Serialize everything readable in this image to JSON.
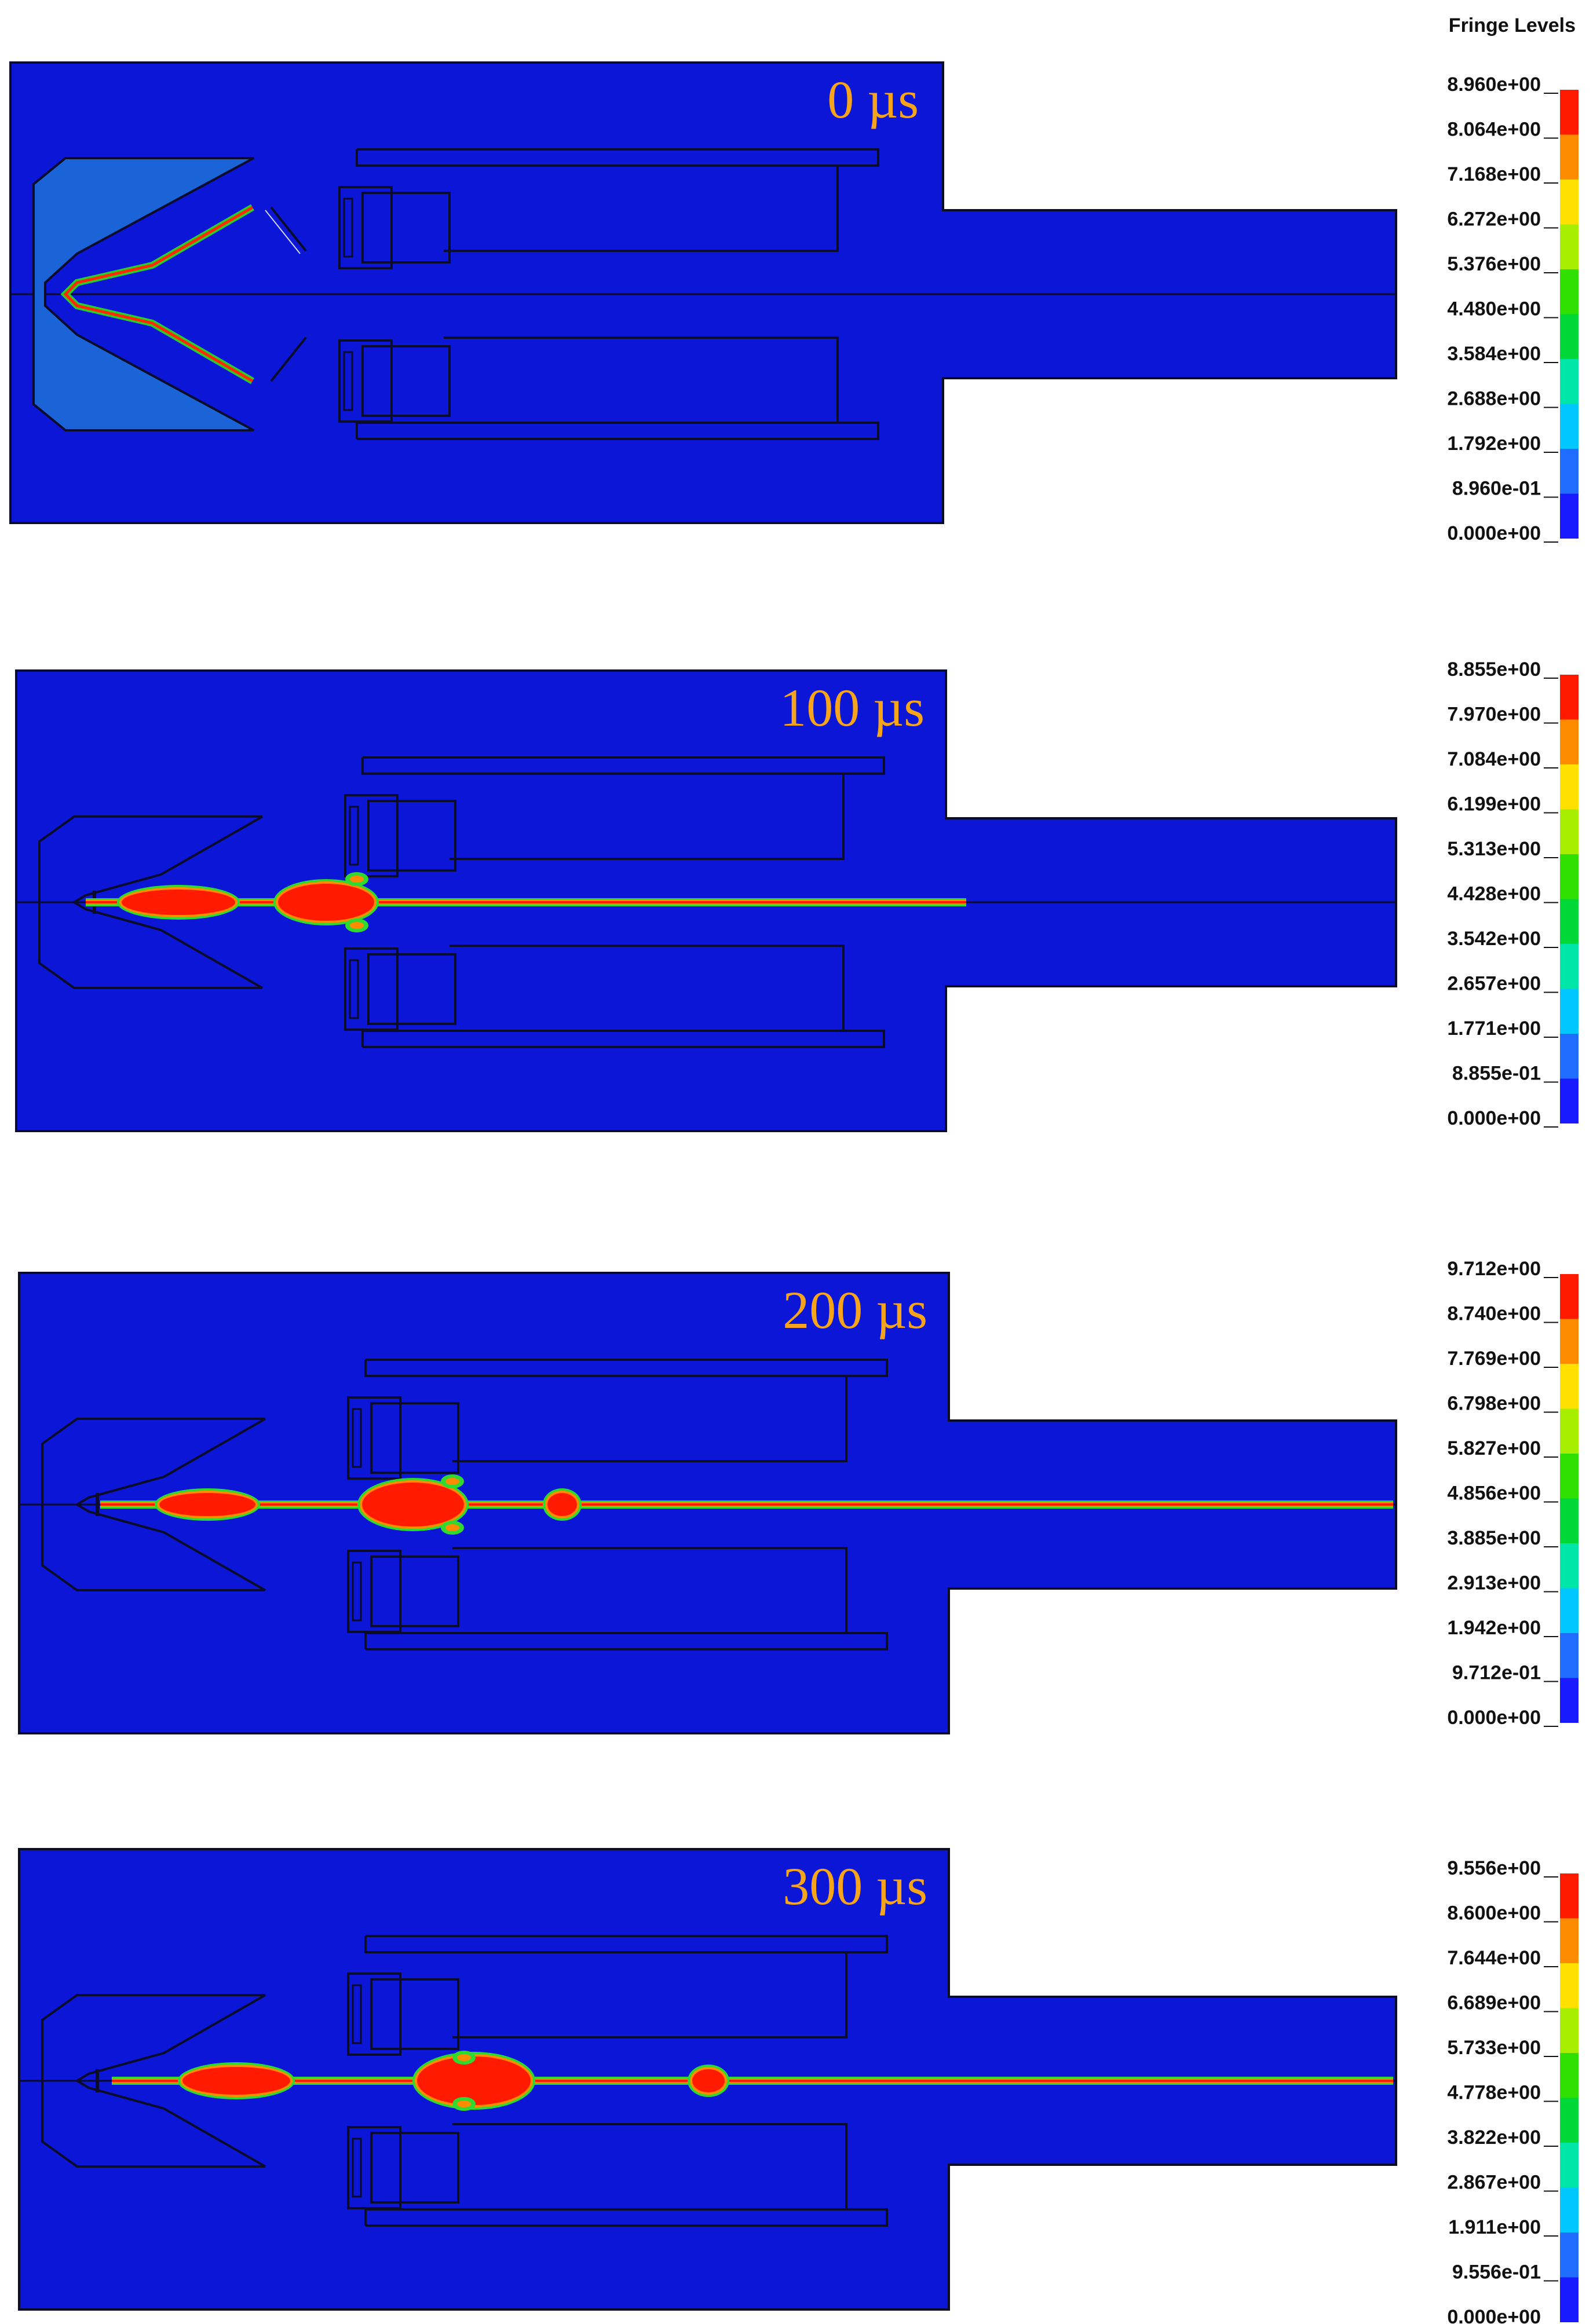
{
  "legend_title": "Fringe Levels",
  "colors": {
    "background": "#0b16d6",
    "liner": "#1a64d8",
    "outline": "#0b0b2a",
    "time_label": "#f7a41d",
    "fringe_scale": [
      "#1a1aff",
      "#1f6cff",
      "#00c8ff",
      "#00e5a8",
      "#00d838",
      "#30e000",
      "#a8ee00",
      "#ffe000",
      "#ff8c00",
      "#ff1a00"
    ]
  },
  "panels": [
    {
      "time": "0 µs",
      "fringe": [
        "8.960e+00",
        "8.064e+00",
        "7.168e+00",
        "6.272e+00",
        "5.376e+00",
        "4.480e+00",
        "3.584e+00",
        "2.688e+00",
        "1.792e+00",
        "8.960e-01",
        "0.000e+00"
      ]
    },
    {
      "time": "100 µs",
      "fringe": [
        "8.855e+00",
        "7.970e+00",
        "7.084e+00",
        "6.199e+00",
        "5.313e+00",
        "4.428e+00",
        "3.542e+00",
        "2.657e+00",
        "1.771e+00",
        "8.855e-01",
        "0.000e+00"
      ]
    },
    {
      "time": "200 µs",
      "fringe": [
        "9.712e+00",
        "8.740e+00",
        "7.769e+00",
        "6.798e+00",
        "5.827e+00",
        "4.856e+00",
        "3.885e+00",
        "2.913e+00",
        "1.942e+00",
        "9.712e-01",
        "0.000e+00"
      ]
    },
    {
      "time": "300 µs",
      "fringe": [
        "9.556e+00",
        "8.600e+00",
        "7.644e+00",
        "6.689e+00",
        "5.733e+00",
        "4.778e+00",
        "3.822e+00",
        "2.867e+00",
        "1.911e+00",
        "9.556e-01",
        "0.000e+00"
      ]
    }
  ]
}
